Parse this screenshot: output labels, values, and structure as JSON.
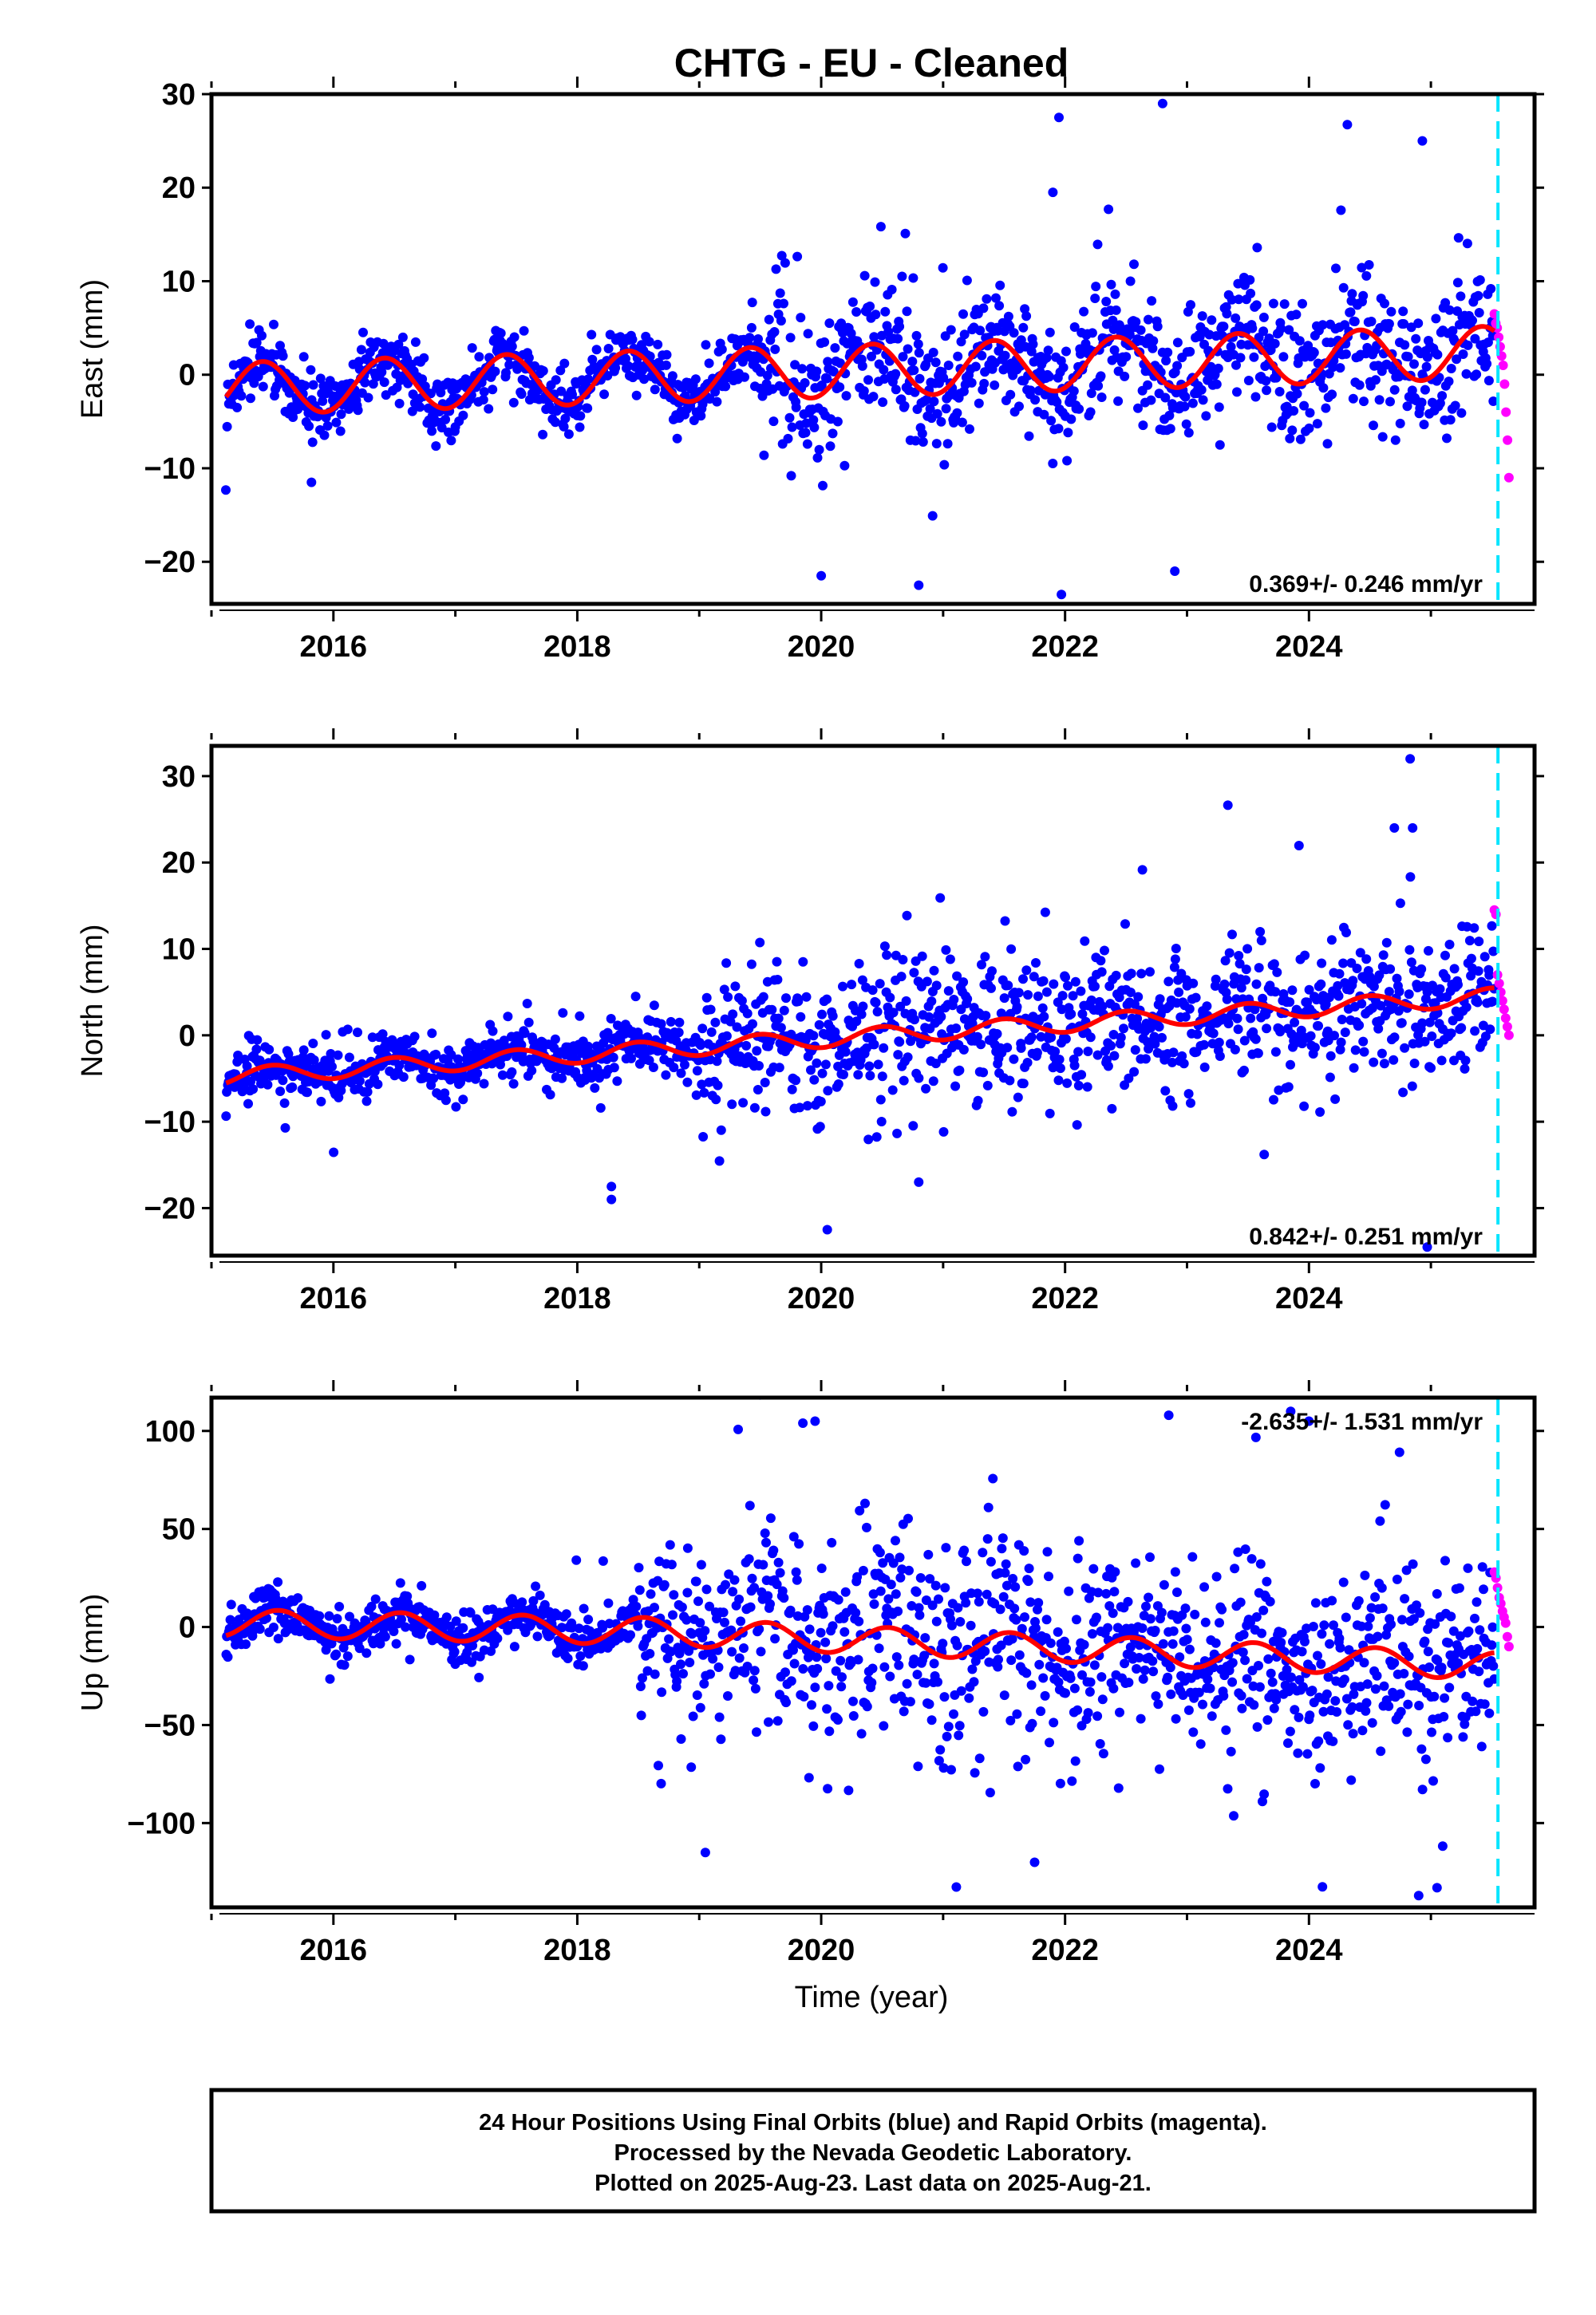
{
  "title": "CHTG  - EU - Cleaned",
  "xlabel": "Time (year)",
  "footer": {
    "line1": "24 Hour Positions Using Final Orbits (blue) and Rapid Orbits (magenta).",
    "line2": "Processed by the Nevada Geodetic Laboratory.",
    "line3": "Plotted on 2025-Aug-23. Last data on 2025-Aug-21."
  },
  "colors": {
    "final_orbits": "#0000ff",
    "rapid_orbits": "#ff00ff",
    "model_fit": "#ff0000",
    "last_data_line": "#00e5ff"
  },
  "chart_data": [
    {
      "type": "scatter",
      "ylabel": "East (mm)",
      "xlim": [
        2015.0,
        2025.85
      ],
      "ylim": [
        -24.5,
        30
      ],
      "yticks": [
        -20,
        -10,
        0,
        10,
        20,
        30
      ],
      "xticks": [
        2016,
        2018,
        2020,
        2022,
        2024
      ],
      "rate_text": "0.369+/- 0.246 mm/yr",
      "last_data_marker": 2025.55,
      "series": [
        {
          "kind": "final",
          "x_start": 2015.12,
          "x_end": 2025.52,
          "trend": [
            [
              2015.12,
              -1.5
            ],
            [
              2025.52,
              2.4
            ]
          ],
          "seasonal_amp": 2.8,
          "seasonal_phase_peak": 2015.42,
          "scatter_sd_by_period": [
            [
              2015.12,
              2019.5,
              1.6
            ],
            [
              2019.5,
              2025.52,
              3.6
            ]
          ]
        },
        {
          "kind": "rapid",
          "x_start": 2025.52,
          "x_end": 2025.64,
          "values": [
            6.5,
            5.5,
            5,
            4,
            3,
            2,
            1,
            -1,
            -4,
            -7,
            -11
          ]
        },
        {
          "kind": "fit",
          "seasonal_amp": 2.8,
          "trend": [
            [
              2015.12,
              -1.5
            ],
            [
              2025.52,
              2.4
            ]
          ]
        }
      ],
      "notable_points": [
        [
          2021.95,
          27.5
        ],
        [
          2022.8,
          29
        ],
        [
          2021.9,
          19.5
        ],
        [
          2024.93,
          25
        ],
        [
          2020.0,
          -21.5
        ],
        [
          2020.8,
          -22.5
        ],
        [
          2021.97,
          -23.5
        ],
        [
          2022.9,
          -21
        ],
        [
          2015.82,
          -11.5
        ]
      ]
    },
    {
      "type": "scatter",
      "ylabel": "North (mm)",
      "xlim": [
        2015.0,
        2025.85
      ],
      "ylim": [
        -25.5,
        33.5
      ],
      "yticks": [
        -20,
        -10,
        0,
        10,
        20,
        30
      ],
      "xticks": [
        2016,
        2018,
        2020,
        2022,
        2024
      ],
      "rate_text": "0.842+/- 0.251 mm/yr",
      "last_data_marker": 2025.55,
      "series": [
        {
          "kind": "final",
          "x_start": 2015.12,
          "x_end": 2025.52,
          "trend": [
            [
              2015.12,
              -4.8
            ],
            [
              2025.52,
              4.5
            ]
          ],
          "seasonal_amp": 1.0,
          "seasonal_phase_peak": 2015.5,
          "scatter_sd_by_period": [
            [
              2015.12,
              2019.0,
              1.5
            ],
            [
              2019.0,
              2025.52,
              4.0
            ]
          ]
        },
        {
          "kind": "rapid",
          "x_start": 2025.52,
          "x_end": 2025.64,
          "values": [
            14.5,
            14,
            7,
            6,
            5,
            4,
            3,
            2,
            1,
            0
          ]
        },
        {
          "kind": "fit",
          "seasonal_amp": 1.0,
          "trend": [
            [
              2015.12,
              -4.8
            ],
            [
              2025.52,
              4.5
            ]
          ]
        }
      ],
      "notable_points": [
        [
          2024.83,
          32
        ],
        [
          2024.7,
          24
        ],
        [
          2024.85,
          24
        ],
        [
          2018.28,
          -19
        ],
        [
          2018.28,
          -17.5
        ],
        [
          2020.05,
          -22.5
        ],
        [
          2024.97,
          -24.5
        ],
        [
          2020.8,
          -17
        ]
      ]
    },
    {
      "type": "scatter",
      "ylabel": "Up (mm)",
      "xlim": [
        2015.0,
        2025.85
      ],
      "ylim": [
        -143,
        117
      ],
      "yticks": [
        -100,
        -50,
        0,
        50,
        100
      ],
      "xticks": [
        2016,
        2018,
        2020,
        2022,
        2024
      ],
      "rate_text": "-2.635+/- 1.531 mm/yr",
      "last_data_marker": 2025.55,
      "series": [
        {
          "kind": "final",
          "x_start": 2015.12,
          "x_end": 2025.52,
          "trend": [
            [
              2015.12,
              2
            ],
            [
              2018.5,
              -2
            ],
            [
              2025.52,
              -20
            ]
          ],
          "seasonal_amp": 7,
          "seasonal_phase_peak": 2015.55,
          "scatter_sd_by_period": [
            [
              2015.12,
              2018.5,
              6
            ],
            [
              2018.5,
              2025.52,
              25
            ]
          ]
        },
        {
          "kind": "rapid",
          "x_start": 2025.52,
          "x_end": 2025.64,
          "values": [
            28,
            25,
            20,
            15,
            12,
            8,
            5,
            2,
            -5,
            -10
          ]
        },
        {
          "kind": "fit",
          "seasonal_amp": 7,
          "trend": [
            [
              2015.12,
              2
            ],
            [
              2018.5,
              -2
            ],
            [
              2025.52,
              -20
            ]
          ]
        }
      ],
      "notable_points": [
        [
          2019.85,
          104
        ],
        [
          2019.95,
          105
        ],
        [
          2022.85,
          108
        ],
        [
          2023.85,
          110
        ],
        [
          2024.0,
          105
        ],
        [
          2024.9,
          -137
        ],
        [
          2025.05,
          -133
        ],
        [
          2019.05,
          -115
        ],
        [
          2021.75,
          -120
        ]
      ]
    }
  ]
}
